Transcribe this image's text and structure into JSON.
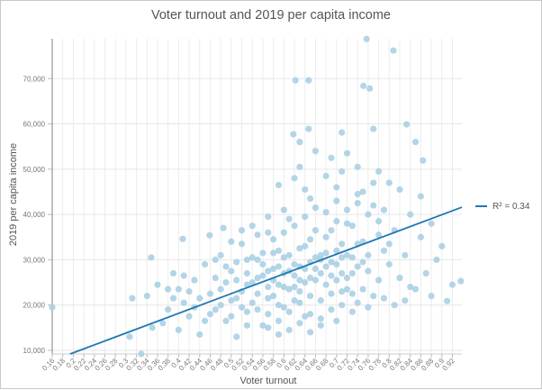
{
  "chart_data": {
    "type": "scatter",
    "title": "Voter turnout and 2019 per capita income",
    "xlabel": "Voter turnout",
    "ylabel": "2019 per capita income",
    "xlim": [
      0.16,
      0.938
    ],
    "ylim": [
      9200,
      78800
    ],
    "grid": true,
    "legend_placement": "right",
    "x_ticks": [
      "0.16",
      "0.18",
      "0.2",
      "0.22",
      "0.24",
      "0.26",
      "0.28",
      "0.3",
      "0.32",
      "0.34",
      "0.36",
      "0.38",
      "0.4",
      "0.42",
      "0.44",
      "0.46",
      "0.48",
      "0.5",
      "0.52",
      "0.54",
      "0.56",
      "0.58",
      "0.6",
      "0.62",
      "0.64",
      "0.66",
      "0.68",
      "0.7",
      "0.72",
      "0.74",
      "0.76",
      "0.78",
      "0.8",
      "0.82",
      "0.84",
      "0.86",
      "0.88",
      "0.9",
      "0.92"
    ],
    "y_ticks": [
      "10,000",
      "20,000",
      "30,000",
      "40,000",
      "50,000",
      "60,000",
      "70,000"
    ],
    "colors": {
      "points": "#a6cee3",
      "trendline": "#1f78b4"
    },
    "trendline": {
      "label": "R² = 0.34",
      "r_squared": 0.34,
      "from": [
        0.194,
        9200
      ],
      "to": [
        0.938,
        41600
      ]
    },
    "points": [
      [
        0.757,
        78750
      ],
      [
        0.808,
        76200
      ],
      [
        0.622,
        69600
      ],
      [
        0.647,
        69600
      ],
      [
        0.751,
        68400
      ],
      [
        0.763,
        67800
      ],
      [
        0.833,
        59900
      ],
      [
        0.77,
        58900
      ],
      [
        0.647,
        58900
      ],
      [
        0.71,
        58100
      ],
      [
        0.618,
        57700
      ],
      [
        0.63,
        56000
      ],
      [
        0.85,
        56000
      ],
      [
        0.864,
        51900
      ],
      [
        0.16,
        19500
      ],
      [
        0.936,
        25300
      ],
      [
        0.91,
        20900
      ],
      [
        0.408,
        34600
      ],
      [
        0.459,
        35400
      ],
      [
        0.485,
        37000
      ],
      [
        0.348,
        30500
      ],
      [
        0.329,
        9200
      ],
      [
        0.307,
        13000
      ],
      [
        0.312,
        21500
      ],
      [
        0.66,
        54000
      ],
      [
        0.69,
        52500
      ],
      [
        0.72,
        53500
      ],
      [
        0.74,
        50500
      ],
      [
        0.78,
        49500
      ],
      [
        0.8,
        47000
      ],
      [
        0.68,
        48500
      ],
      [
        0.62,
        48000
      ],
      [
        0.59,
        46500
      ],
      [
        0.64,
        45500
      ],
      [
        0.7,
        46000
      ],
      [
        0.75,
        45000
      ],
      [
        0.82,
        45500
      ],
      [
        0.86,
        44000
      ],
      [
        0.84,
        40000
      ],
      [
        0.88,
        38000
      ],
      [
        0.9,
        33000
      ],
      [
        0.86,
        35000
      ],
      [
        0.89,
        30000
      ],
      [
        0.87,
        27000
      ],
      [
        0.92,
        24500
      ],
      [
        0.88,
        22000
      ],
      [
        0.84,
        24000
      ],
      [
        0.82,
        26000
      ],
      [
        0.8,
        29000
      ],
      [
        0.83,
        31000
      ],
      [
        0.81,
        36500
      ],
      [
        0.78,
        38500
      ],
      [
        0.34,
        22000
      ],
      [
        0.36,
        24500
      ],
      [
        0.38,
        19000
      ],
      [
        0.37,
        16000
      ],
      [
        0.35,
        15000
      ],
      [
        0.39,
        27000
      ],
      [
        0.4,
        23500
      ],
      [
        0.41,
        20500
      ],
      [
        0.42,
        17500
      ],
      [
        0.43,
        25500
      ],
      [
        0.4,
        14500
      ],
      [
        0.44,
        13500
      ],
      [
        0.45,
        29000
      ],
      [
        0.46,
        22500
      ],
      [
        0.47,
        19000
      ],
      [
        0.48,
        31000
      ],
      [
        0.49,
        16500
      ],
      [
        0.5,
        27500
      ],
      [
        0.51,
        21500
      ],
      [
        0.52,
        33500
      ],
      [
        0.53,
        18500
      ],
      [
        0.54,
        25000
      ],
      [
        0.55,
        30000
      ],
      [
        0.56,
        15500
      ],
      [
        0.57,
        36000
      ],
      [
        0.58,
        22000
      ],
      [
        0.59,
        28500
      ],
      [
        0.6,
        19500
      ],
      [
        0.61,
        39000
      ],
      [
        0.62,
        24000
      ],
      [
        0.63,
        32500
      ],
      [
        0.64,
        17500
      ],
      [
        0.65,
        29500
      ],
      [
        0.66,
        41500
      ],
      [
        0.67,
        21000
      ],
      [
        0.68,
        35000
      ],
      [
        0.69,
        26500
      ],
      [
        0.7,
        43000
      ],
      [
        0.71,
        23000
      ],
      [
        0.72,
        38000
      ],
      [
        0.73,
        30500
      ],
      [
        0.74,
        20500
      ],
      [
        0.75,
        34000
      ],
      [
        0.76,
        27500
      ],
      [
        0.77,
        42000
      ],
      [
        0.78,
        25500
      ],
      [
        0.79,
        32000
      ],
      [
        0.47,
        26000
      ],
      [
        0.48,
        23500
      ],
      [
        0.49,
        28500
      ],
      [
        0.5,
        21000
      ],
      [
        0.51,
        25500
      ],
      [
        0.52,
        19500
      ],
      [
        0.53,
        27000
      ],
      [
        0.54,
        30500
      ],
      [
        0.55,
        22500
      ],
      [
        0.56,
        26500
      ],
      [
        0.57,
        24000
      ],
      [
        0.58,
        31500
      ],
      [
        0.59,
        20000
      ],
      [
        0.6,
        27000
      ],
      [
        0.61,
        23500
      ],
      [
        0.62,
        29000
      ],
      [
        0.63,
        25500
      ],
      [
        0.64,
        33000
      ],
      [
        0.65,
        22000
      ],
      [
        0.66,
        28000
      ],
      [
        0.67,
        31000
      ],
      [
        0.68,
        24500
      ],
      [
        0.69,
        36500
      ],
      [
        0.7,
        29000
      ],
      [
        0.71,
        33500
      ],
      [
        0.72,
        26000
      ],
      [
        0.73,
        37500
      ],
      [
        0.74,
        28500
      ],
      [
        0.52,
        23000
      ],
      [
        0.53,
        24500
      ],
      [
        0.54,
        20500
      ],
      [
        0.55,
        26000
      ],
      [
        0.56,
        29000
      ],
      [
        0.57,
        21500
      ],
      [
        0.58,
        25500
      ],
      [
        0.59,
        32000
      ],
      [
        0.6,
        24000
      ],
      [
        0.61,
        27500
      ],
      [
        0.62,
        21000
      ],
      [
        0.63,
        28500
      ],
      [
        0.64,
        25000
      ],
      [
        0.65,
        34500
      ],
      [
        0.66,
        25500
      ],
      [
        0.67,
        30000
      ],
      [
        0.68,
        28500
      ],
      [
        0.69,
        22500
      ],
      [
        0.7,
        32000
      ],
      [
        0.71,
        27000
      ],
      [
        0.72,
        31000
      ],
      [
        0.56,
        31500
      ],
      [
        0.58,
        34500
      ],
      [
        0.6,
        36000
      ],
      [
        0.62,
        37500
      ],
      [
        0.64,
        39500
      ],
      [
        0.66,
        36500
      ],
      [
        0.68,
        40500
      ],
      [
        0.7,
        38500
      ],
      [
        0.72,
        41000
      ],
      [
        0.74,
        42500
      ],
      [
        0.57,
        18000
      ],
      [
        0.59,
        16500
      ],
      [
        0.61,
        18500
      ],
      [
        0.63,
        20500
      ],
      [
        0.65,
        18000
      ],
      [
        0.67,
        17000
      ],
      [
        0.69,
        19000
      ],
      [
        0.71,
        20000
      ],
      [
        0.73,
        22500
      ],
      [
        0.75,
        23500
      ],
      [
        0.77,
        22000
      ],
      [
        0.5,
        17500
      ],
      [
        0.48,
        20000
      ],
      [
        0.46,
        18000
      ],
      [
        0.44,
        21500
      ],
      [
        0.42,
        23000
      ],
      [
        0.45,
        16500
      ],
      [
        0.43,
        19500
      ],
      [
        0.41,
        26500
      ],
      [
        0.39,
        21500
      ],
      [
        0.38,
        23500
      ],
      [
        0.55,
        35500
      ],
      [
        0.53,
        30000
      ],
      [
        0.51,
        29500
      ],
      [
        0.49,
        25000
      ],
      [
        0.47,
        30000
      ],
      [
        0.58,
        28000
      ],
      [
        0.6,
        30500
      ],
      [
        0.62,
        26500
      ],
      [
        0.64,
        28000
      ],
      [
        0.66,
        30500
      ],
      [
        0.68,
        31500
      ],
      [
        0.7,
        25500
      ],
      [
        0.72,
        23500
      ],
      [
        0.74,
        33500
      ],
      [
        0.76,
        31000
      ],
      [
        0.78,
        35500
      ],
      [
        0.8,
        33500
      ],
      [
        0.57,
        27500
      ],
      [
        0.59,
        24500
      ],
      [
        0.61,
        31000
      ],
      [
        0.63,
        23000
      ],
      [
        0.65,
        26000
      ],
      [
        0.67,
        27000
      ],
      [
        0.69,
        29500
      ],
      [
        0.71,
        30500
      ],
      [
        0.73,
        27000
      ],
      [
        0.75,
        29500
      ],
      [
        0.55,
        19000
      ],
      [
        0.57,
        15000
      ],
      [
        0.59,
        13500
      ],
      [
        0.61,
        14500
      ],
      [
        0.63,
        16000
      ],
      [
        0.65,
        14000
      ],
      [
        0.67,
        15500
      ],
      [
        0.53,
        15500
      ],
      [
        0.51,
        13000
      ],
      [
        0.7,
        16500
      ],
      [
        0.73,
        18500
      ],
      [
        0.76,
        19500
      ],
      [
        0.79,
        21500
      ],
      [
        0.81,
        20000
      ],
      [
        0.83,
        21000
      ],
      [
        0.85,
        23500
      ],
      [
        0.76,
        40000
      ],
      [
        0.79,
        41000
      ],
      [
        0.74,
        44500
      ],
      [
        0.65,
        43500
      ],
      [
        0.6,
        41000
      ],
      [
        0.57,
        39500
      ],
      [
        0.54,
        37500
      ],
      [
        0.52,
        36500
      ],
      [
        0.5,
        34000
      ],
      [
        0.63,
        50500
      ],
      [
        0.71,
        49500
      ],
      [
        0.77,
        47000
      ]
    ]
  }
}
